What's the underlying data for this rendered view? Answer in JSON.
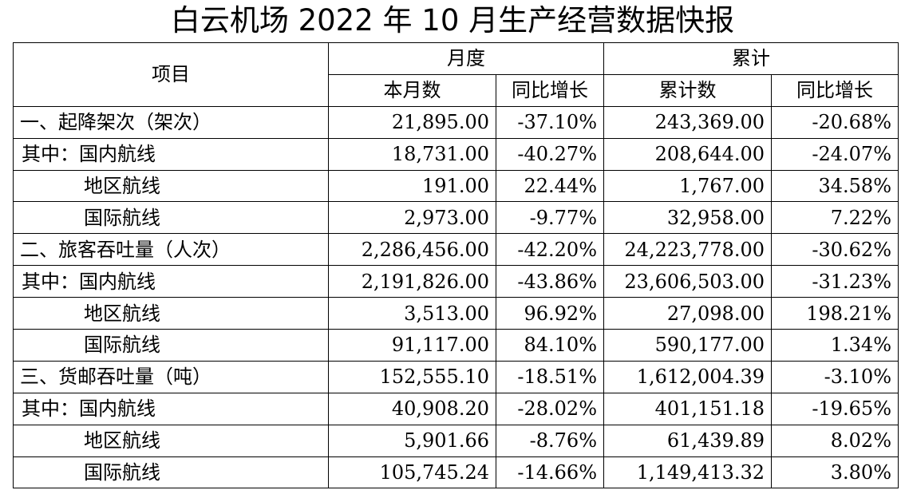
{
  "title": "白云机场 2022 年 10 月生产经营数据快报",
  "header": {
    "item": "项目",
    "month_group": "月度",
    "cumulative_group": "累计",
    "month_value": "本月数",
    "month_yoy": "同比增长",
    "cum_value": "累计数",
    "cum_yoy": "同比增长"
  },
  "rows": [
    {
      "label": "一、起降架次（架次）",
      "month": "21,895.00",
      "month_yoy": "-37.10%",
      "cum": "243,369.00",
      "cum_yoy": "-20.68%"
    },
    {
      "label": "其中：国内航线",
      "month": "18,731.00",
      "month_yoy": "-40.27%",
      "cum": "208,644.00",
      "cum_yoy": "-24.07%"
    },
    {
      "label": "地区航线",
      "month": "191.00",
      "month_yoy": "22.44%",
      "cum": "1,767.00",
      "cum_yoy": "34.58%"
    },
    {
      "label": "国际航线",
      "month": "2,973.00",
      "month_yoy": "-9.77%",
      "cum": "32,958.00",
      "cum_yoy": "7.22%"
    },
    {
      "label": "二、旅客吞吐量（人次）",
      "month": "2,286,456.00",
      "month_yoy": "-42.20%",
      "cum": "24,223,778.00",
      "cum_yoy": "-30.62%"
    },
    {
      "label": "其中：国内航线",
      "month": "2,191,826.00",
      "month_yoy": "-43.86%",
      "cum": "23,606,503.00",
      "cum_yoy": "-31.23%"
    },
    {
      "label": "地区航线",
      "month": "3,513.00",
      "month_yoy": "96.92%",
      "cum": "27,098.00",
      "cum_yoy": "198.21%"
    },
    {
      "label": "国际航线",
      "month": "91,117.00",
      "month_yoy": "84.10%",
      "cum": "590,177.00",
      "cum_yoy": "1.34%"
    },
    {
      "label": "三、货邮吞吐量（吨）",
      "month": "152,555.10",
      "month_yoy": "-18.51%",
      "cum": "1,612,004.39",
      "cum_yoy": "-3.10%"
    },
    {
      "label": "其中：国内航线",
      "month": "40,908.20",
      "month_yoy": "-28.02%",
      "cum": "401,151.18",
      "cum_yoy": "-19.65%"
    },
    {
      "label": "地区航线",
      "month": "5,901.66",
      "month_yoy": "-8.76%",
      "cum": "61,439.89",
      "cum_yoy": "8.02%"
    },
    {
      "label": "国际航线",
      "month": "105,745.24",
      "month_yoy": "-14.66%",
      "cum": "1,149,413.32",
      "cum_yoy": "3.80%"
    }
  ]
}
